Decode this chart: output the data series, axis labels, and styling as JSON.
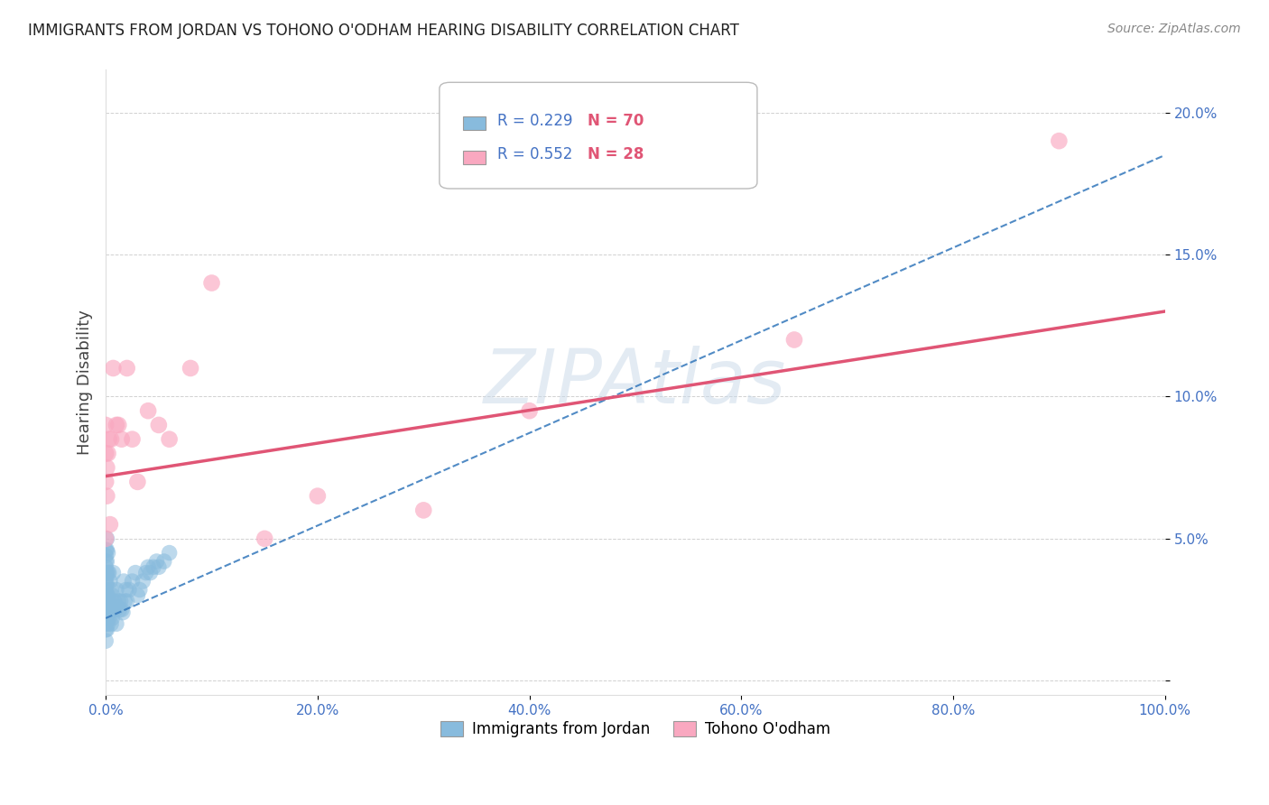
{
  "title": "IMMIGRANTS FROM JORDAN VS TOHONO O'ODHAM HEARING DISABILITY CORRELATION CHART",
  "source": "Source: ZipAtlas.com",
  "ylabel": "Hearing Disability",
  "legend_labels": [
    "Immigrants from Jordan",
    "Tohono O'odham"
  ],
  "r_jordan": 0.229,
  "n_jordan": 70,
  "r_tohono": 0.552,
  "n_tohono": 28,
  "color_jordan": "#88bbdd",
  "color_tohono": "#f9a8c0",
  "trendline_jordan_color": "#3377bb",
  "trendline_tohono_color": "#e05575",
  "xlim": [
    0,
    1.0
  ],
  "ylim": [
    -0.005,
    0.215
  ],
  "xticks": [
    0,
    0.2,
    0.4,
    0.6,
    0.8,
    1.0
  ],
  "yticks": [
    0.0,
    0.05,
    0.1,
    0.15,
    0.2
  ],
  "xtick_labels": [
    "0.0%",
    "20.0%",
    "40.0%",
    "60.0%",
    "80.0%",
    "100.0%"
  ],
  "ytick_labels": [
    "",
    "5.0%",
    "10.0%",
    "15.0%",
    "20.0%"
  ],
  "watermark": "ZIPAtlas",
  "jordan_x": [
    0.0,
    0.0,
    0.0,
    0.0,
    0.0,
    0.0,
    0.0,
    0.0,
    0.0,
    0.0,
    0.0,
    0.0,
    0.0,
    0.0,
    0.0,
    0.0,
    0.001,
    0.001,
    0.001,
    0.001,
    0.001,
    0.001,
    0.001,
    0.001,
    0.001,
    0.002,
    0.002,
    0.002,
    0.002,
    0.002,
    0.003,
    0.003,
    0.003,
    0.004,
    0.004,
    0.005,
    0.005,
    0.005,
    0.006,
    0.006,
    0.007,
    0.007,
    0.008,
    0.009,
    0.01,
    0.01,
    0.011,
    0.012,
    0.013,
    0.014,
    0.015,
    0.016,
    0.017,
    0.018,
    0.019,
    0.02,
    0.022,
    0.025,
    0.028,
    0.03,
    0.032,
    0.035,
    0.038,
    0.04,
    0.042,
    0.045,
    0.048,
    0.05,
    0.055,
    0.06
  ],
  "jordan_y": [
    0.014,
    0.018,
    0.02,
    0.022,
    0.024,
    0.026,
    0.028,
    0.03,
    0.032,
    0.034,
    0.036,
    0.038,
    0.04,
    0.042,
    0.044,
    0.046,
    0.018,
    0.022,
    0.026,
    0.03,
    0.034,
    0.038,
    0.042,
    0.046,
    0.05,
    0.02,
    0.025,
    0.03,
    0.038,
    0.045,
    0.022,
    0.028,
    0.038,
    0.025,
    0.035,
    0.02,
    0.025,
    0.032,
    0.022,
    0.03,
    0.025,
    0.038,
    0.028,
    0.025,
    0.02,
    0.032,
    0.026,
    0.028,
    0.025,
    0.028,
    0.025,
    0.024,
    0.035,
    0.028,
    0.032,
    0.028,
    0.032,
    0.035,
    0.038,
    0.03,
    0.032,
    0.035,
    0.038,
    0.04,
    0.038,
    0.04,
    0.042,
    0.04,
    0.042,
    0.045
  ],
  "tohono_x": [
    0.0,
    0.0,
    0.0,
    0.0,
    0.001,
    0.001,
    0.002,
    0.003,
    0.004,
    0.005,
    0.007,
    0.01,
    0.012,
    0.015,
    0.02,
    0.025,
    0.03,
    0.04,
    0.05,
    0.06,
    0.08,
    0.1,
    0.15,
    0.2,
    0.3,
    0.4,
    0.65,
    0.9
  ],
  "tohono_y": [
    0.05,
    0.07,
    0.08,
    0.09,
    0.065,
    0.075,
    0.08,
    0.085,
    0.055,
    0.085,
    0.11,
    0.09,
    0.09,
    0.085,
    0.11,
    0.085,
    0.07,
    0.095,
    0.09,
    0.085,
    0.11,
    0.14,
    0.05,
    0.065,
    0.06,
    0.095,
    0.12,
    0.19
  ],
  "trendline_jordan_x0": 0.0,
  "trendline_jordan_y0": 0.022,
  "trendline_jordan_x1": 1.0,
  "trendline_jordan_y1": 0.185,
  "trendline_tohono_x0": 0.0,
  "trendline_tohono_y0": 0.072,
  "trendline_tohono_x1": 1.0,
  "trendline_tohono_y1": 0.13
}
